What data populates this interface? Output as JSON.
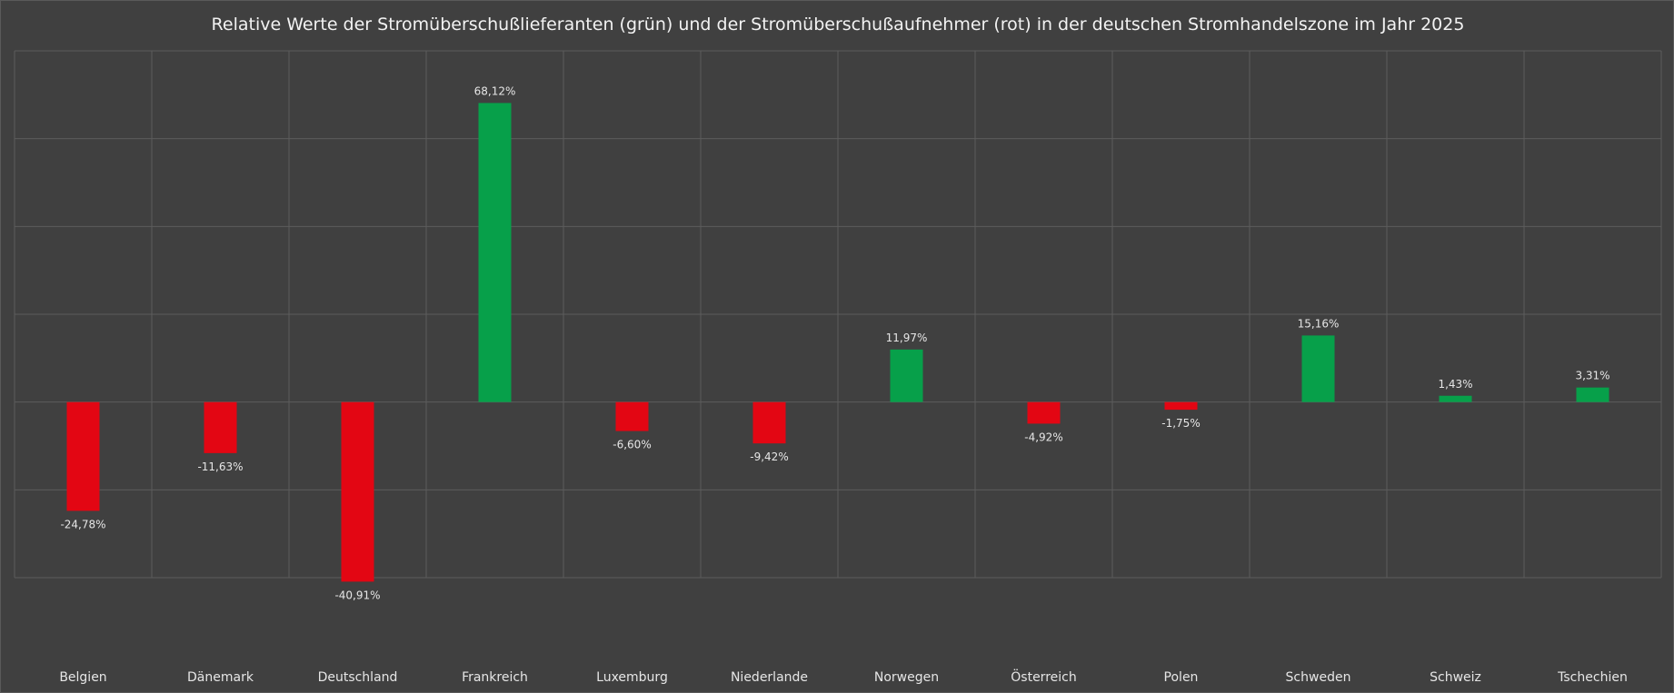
{
  "chart_data": {
    "type": "bar",
    "title": "Relative Werte der Stromüberschußlieferanten (grün) und der Stromüberschußaufnehmer (rot) in der deutschen Stromhandelszone  im Jahr 2025",
    "categories": [
      "Belgien",
      "Dänemark",
      "Deutschland",
      "Frankreich",
      "Luxemburg",
      "Niederlande",
      "Norwegen",
      "Österreich",
      "Polen",
      "Schweden",
      "Schweiz",
      "Tschechien"
    ],
    "values": [
      -24.78,
      -11.63,
      -40.91,
      68.12,
      -6.6,
      -9.42,
      11.97,
      -4.92,
      -1.75,
      15.16,
      1.43,
      3.31
    ],
    "value_labels": [
      "-24,78%",
      "-11,63%",
      "-40,91%",
      "68,12%",
      "-6,60%",
      "-9,42%",
      "11,97%",
      "-4,92%",
      "-1,75%",
      "15,16%",
      "1,43%",
      "3,31%"
    ],
    "ylim": [
      -40,
      80
    ],
    "grid": true,
    "legend": "none",
    "colors": {
      "positive": "#07a04a",
      "negative": "#e30613",
      "background": "#404040",
      "grid": "#5c5c5c",
      "text": "#e6e6e6"
    }
  }
}
